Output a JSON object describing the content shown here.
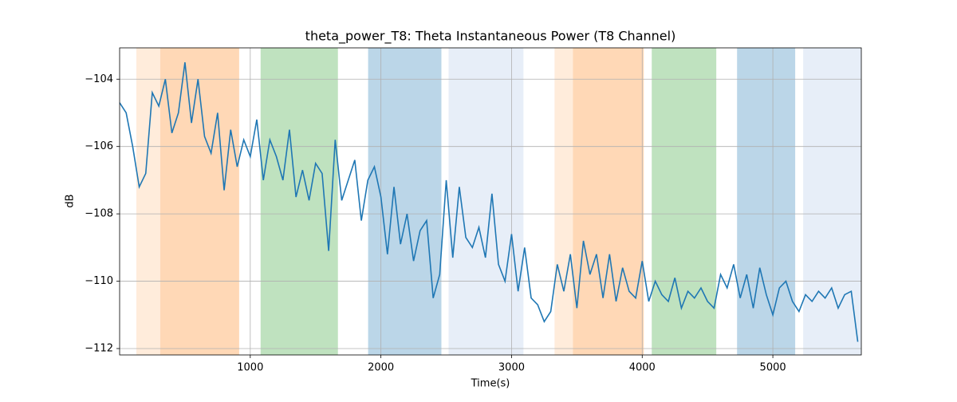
{
  "chart_data": {
    "type": "line",
    "title": "theta_power_T8: Theta Instantaneous Power (T8 Channel)",
    "xlabel": "Time(s)",
    "ylabel": "dB",
    "x": [
      0,
      50,
      100,
      150,
      200,
      250,
      300,
      350,
      400,
      450,
      500,
      550,
      600,
      650,
      700,
      750,
      800,
      850,
      900,
      950,
      1000,
      1050,
      1100,
      1150,
      1200,
      1250,
      1300,
      1350,
      1400,
      1450,
      1500,
      1550,
      1600,
      1650,
      1700,
      1750,
      1800,
      1850,
      1900,
      1950,
      2000,
      2050,
      2100,
      2150,
      2200,
      2250,
      2300,
      2350,
      2400,
      2450,
      2500,
      2550,
      2600,
      2650,
      2700,
      2750,
      2800,
      2850,
      2900,
      2950,
      3000,
      3050,
      3100,
      3150,
      3200,
      3250,
      3300,
      3350,
      3400,
      3450,
      3500,
      3550,
      3600,
      3650,
      3700,
      3750,
      3800,
      3850,
      3900,
      3950,
      4000,
      4050,
      4100,
      4150,
      4200,
      4250,
      4300,
      4350,
      4400,
      4450,
      4500,
      4550,
      4600,
      4650,
      4700,
      4750,
      4800,
      4850,
      4900,
      4950,
      5000,
      5050,
      5100,
      5150,
      5200,
      5250,
      5300,
      5350,
      5400,
      5450,
      5500,
      5550,
      5600,
      5650
    ],
    "series": [
      {
        "color": "#1f77b4",
        "values": [
          -104.7,
          -105.0,
          -106.0,
          -107.2,
          -106.8,
          -104.4,
          -104.8,
          -104.0,
          -105.6,
          -105.0,
          -103.5,
          -105.3,
          -104.0,
          -105.7,
          -106.2,
          -105.0,
          -107.3,
          -105.5,
          -106.6,
          -105.8,
          -106.3,
          -105.2,
          -107.0,
          -105.8,
          -106.3,
          -107.0,
          -105.5,
          -107.5,
          -106.7,
          -107.6,
          -106.5,
          -106.8,
          -109.1,
          -105.8,
          -107.6,
          -107.0,
          -106.4,
          -108.2,
          -107.0,
          -106.6,
          -107.5,
          -109.2,
          -107.2,
          -108.9,
          -108.0,
          -109.4,
          -108.5,
          -108.2,
          -110.5,
          -109.8,
          -107.0,
          -109.3,
          -107.2,
          -108.7,
          -109.0,
          -108.4,
          -109.3,
          -107.4,
          -109.5,
          -110.0,
          -108.6,
          -110.3,
          -109.0,
          -110.5,
          -110.7,
          -111.2,
          -110.9,
          -109.5,
          -110.3,
          -109.2,
          -110.8,
          -108.8,
          -109.8,
          -109.2,
          -110.5,
          -109.2,
          -110.6,
          -109.6,
          -110.3,
          -110.5,
          -109.4,
          -110.6,
          -110.0,
          -110.4,
          -110.6,
          -109.9,
          -110.8,
          -110.3,
          -110.5,
          -110.2,
          -110.6,
          -110.8,
          -109.8,
          -110.2,
          -109.5,
          -110.5,
          -109.8,
          -110.8,
          -109.6,
          -110.4,
          -111.0,
          -110.2,
          -110.0,
          -110.6,
          -110.9,
          -110.4,
          -110.6,
          -110.3,
          -110.5,
          -110.2,
          -110.8,
          -110.4,
          -110.3,
          -111.8
        ]
      }
    ],
    "spans": [
      {
        "start": 128,
        "end": 311,
        "color": "#ff7f0e",
        "opacity": 0.15
      },
      {
        "start": 311,
        "end": 915,
        "color": "#ff7f0e",
        "opacity": 0.3
      },
      {
        "start": 1079,
        "end": 1671,
        "color": "#2ca02c",
        "opacity": 0.3
      },
      {
        "start": 1902,
        "end": 2463,
        "color": "#1f77b4",
        "opacity": 0.3
      },
      {
        "start": 2518,
        "end": 3091,
        "color": "#aec7e8",
        "opacity": 0.3
      },
      {
        "start": 3329,
        "end": 3470,
        "color": "#ff7f0e",
        "opacity": 0.15
      },
      {
        "start": 3470,
        "end": 4012,
        "color": "#ff7f0e",
        "opacity": 0.3
      },
      {
        "start": 4073,
        "end": 4567,
        "color": "#2ca02c",
        "opacity": 0.3
      },
      {
        "start": 4726,
        "end": 5171,
        "color": "#1f77b4",
        "opacity": 0.3
      },
      {
        "start": 5232,
        "end": 5677,
        "color": "#aec7e8",
        "opacity": 0.3
      }
    ],
    "xlim": [
      0,
      5677
    ],
    "ylim": [
      -112.19,
      -103.07
    ],
    "xticks": [
      1000,
      2000,
      3000,
      4000,
      5000
    ],
    "yticks": [
      {
        "value": -112,
        "label": "−112"
      },
      {
        "value": -110,
        "label": "−110"
      },
      {
        "value": -108,
        "label": "−108"
      },
      {
        "value": -106,
        "label": "−106"
      },
      {
        "value": -104,
        "label": "−104"
      }
    ],
    "grid": true
  }
}
